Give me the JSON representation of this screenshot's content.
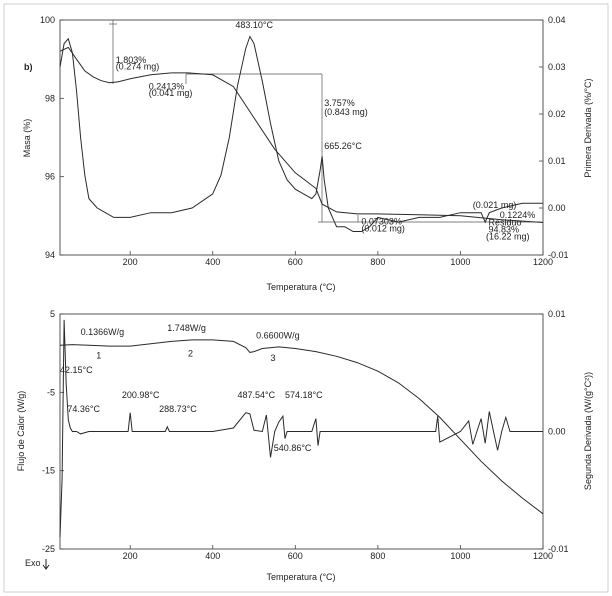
{
  "chart_data": [
    {
      "type": "line",
      "panel_label": "b)",
      "xlabel": "Temperatura (°C)",
      "ylabel": "Masa (%)",
      "y2label": "Primera Derivada (%/°C)",
      "xlim": [
        30,
        1200
      ],
      "ylim": [
        94,
        100
      ],
      "y2lim": [
        -0.01,
        0.04
      ],
      "xticks": [
        "200",
        "400",
        "600",
        "800",
        "1000",
        "1200"
      ],
      "yticks": [
        "94",
        "96",
        "98",
        "100"
      ],
      "y2ticks": [
        "-0.01",
        "0.00",
        "0.01",
        "0.02",
        "0.03",
        "0.04"
      ],
      "series": [
        {
          "role": "mass",
          "x": [
            30,
            50,
            70,
            90,
            110,
            130,
            150,
            170,
            200,
            250,
            300,
            340,
            400,
            450,
            500,
            550,
            600,
            650,
            665,
            700,
            750,
            800,
            900,
            1000,
            1100,
            1200
          ],
          "y": [
            99.2,
            99.3,
            99.0,
            98.7,
            98.55,
            98.45,
            98.4,
            98.42,
            98.5,
            98.6,
            98.65,
            98.65,
            98.6,
            98.3,
            97.5,
            96.7,
            96.1,
            95.7,
            95.3,
            95.1,
            95.05,
            95.05,
            95.03,
            95.0,
            94.9,
            94.83
          ]
        },
        {
          "role": "first-derivative",
          "x": [
            30,
            40,
            50,
            60,
            70,
            80,
            90,
            100,
            120,
            140,
            160,
            180,
            200,
            250,
            300,
            350,
            400,
            420,
            440,
            460,
            480,
            490,
            500,
            520,
            540,
            560,
            580,
            600,
            620,
            640,
            650,
            660,
            665,
            670,
            680,
            700,
            720,
            740,
            760,
            780,
            800,
            850,
            900,
            950,
            1000,
            1050,
            1060,
            1070,
            1100,
            1150,
            1200
          ],
          "y": [
            0.03,
            0.035,
            0.036,
            0.033,
            0.025,
            0.015,
            0.007,
            0.002,
            0.0,
            -0.001,
            -0.002,
            -0.002,
            -0.002,
            -0.001,
            -0.001,
            0.0,
            0.003,
            0.007,
            0.015,
            0.026,
            0.034,
            0.0365,
            0.035,
            0.027,
            0.018,
            0.01,
            0.006,
            0.004,
            0.003,
            0.002,
            0.003,
            0.008,
            0.011,
            0.006,
            0.0,
            -0.004,
            -0.004,
            -0.005,
            -0.005,
            -0.004,
            -0.002,
            -0.003,
            -0.002,
            -0.002,
            -0.001,
            -0.001,
            -0.003,
            -0.001,
            0.0,
            0.001,
            0.001
          ]
        }
      ],
      "annotations": [
        {
          "text": "1.803%",
          "x": 165,
          "y": 98.9
        },
        {
          "text": "(0.274 mg)",
          "x": 165,
          "y": 98.73
        },
        {
          "text": "0.2413%",
          "x": 245,
          "y": 98.23
        },
        {
          "text": "(0.041 mg)",
          "x": 245,
          "y": 98.06
        },
        {
          "text": "483.10°C",
          "x": 455,
          "y": 99.8
        },
        {
          "text": "3.757%",
          "x": 670,
          "y": 97.8
        },
        {
          "text": "(0.843 mg)",
          "x": 670,
          "y": 97.58
        },
        {
          "text": "665.26°C",
          "x": 670,
          "y": 96.7
        },
        {
          "text": "0.07303%",
          "x": 760,
          "y": 94.78
        },
        {
          "text": "(0.012 mg)",
          "x": 760,
          "y": 94.6
        },
        {
          "text": "(0.021 mg)",
          "x": 1030,
          "y": 95.2
        },
        {
          "text": "0.1224%",
          "x": 1095,
          "y": 94.95
        },
        {
          "text": "Residuo",
          "x": 1068,
          "y": 94.75
        },
        {
          "text": "94.83%",
          "x": 1068,
          "y": 94.57
        },
        {
          "text": "(16.22 mg)",
          "x": 1062,
          "y": 94.39
        }
      ]
    },
    {
      "type": "line",
      "xlabel": "Temperatura (°C)",
      "ylabel": "Flujo de Calor (W/g)",
      "y2label": "Segunda Derivada (W/(g°C²))",
      "exo_label": "Exo",
      "xlim": [
        30,
        1200
      ],
      "ylim": [
        -25,
        5
      ],
      "y2lim": [
        -0.01,
        0.01
      ],
      "xticks": [
        "200",
        "400",
        "600",
        "800",
        "1000",
        "1200"
      ],
      "yticks": [
        "-25",
        "-15",
        "-5",
        "5"
      ],
      "y2ticks": [
        "-0.01",
        "0.00",
        "0.01"
      ],
      "series": [
        {
          "role": "heat-flow",
          "x": [
            30,
            60,
            100,
            150,
            200,
            250,
            300,
            350,
            400,
            450,
            480,
            490,
            500,
            520,
            560,
            600,
            650,
            700,
            750,
            800,
            850,
            900,
            950,
            1000,
            1050,
            1100,
            1150,
            1200
          ],
          "y": [
            1.0,
            1.1,
            1.0,
            0.9,
            0.9,
            1.2,
            1.5,
            1.7,
            1.7,
            1.5,
            0.7,
            0.1,
            0.2,
            0.6,
            0.8,
            0.6,
            0.2,
            -0.4,
            -1.2,
            -2.3,
            -3.8,
            -5.8,
            -8.2,
            -11.0,
            -13.8,
            -16.3,
            -18.5,
            -20.5
          ]
        },
        {
          "role": "second-derivative",
          "x": [
            30,
            35,
            40,
            45,
            50,
            55,
            60,
            65,
            70,
            80,
            100,
            150,
            195,
            200,
            205,
            250,
            285,
            290,
            295,
            350,
            400,
            450,
            480,
            490,
            500,
            520,
            530,
            540,
            550,
            560,
            570,
            575,
            580,
            600,
            640,
            650,
            655,
            660,
            700,
            750,
            800,
            850,
            900,
            940,
            945,
            950,
            1000,
            1020,
            1030,
            1040,
            1050,
            1060,
            1070,
            1080,
            1090,
            1100,
            1110,
            1120,
            1150,
            1200
          ],
          "y": [
            -0.009,
            -0.004,
            0.0095,
            0.004,
            0.001,
            0.0003,
            0.0,
            0.0,
            0.0,
            -0.0002,
            0.0,
            0.0,
            0.0,
            0.0016,
            0.0,
            0.0,
            0.0,
            0.0004,
            0.0,
            0.0,
            0.0,
            0.0003,
            0.0016,
            0.0015,
            0.0001,
            0.0,
            0.0014,
            -0.0022,
            0.0,
            0.0008,
            0.0013,
            -0.0006,
            0.0,
            0.0,
            0.0,
            0.0011,
            -0.0012,
            0.0,
            0.0,
            0.0,
            0.0,
            0.0,
            0.0,
            0.0,
            0.0013,
            -0.0009,
            0.0,
            0.0009,
            -0.0011,
            0.0,
            0.0011,
            -0.001,
            0.0017,
            0.0,
            -0.0016,
            0.0,
            0.0012,
            0.0,
            0.0,
            0.0
          ]
        }
      ],
      "annotations": [
        {
          "text": "0.1366W/g",
          "x": 80,
          "y": 2.35
        },
        {
          "text": "1",
          "x": 118,
          "y": -0.65
        },
        {
          "text": "1.748W/g",
          "x": 290,
          "y": 2.85
        },
        {
          "text": "2",
          "x": 340,
          "y": -0.45
        },
        {
          "text": "0.6600W/g",
          "x": 505,
          "y": 1.85
        },
        {
          "text": "3",
          "x": 540,
          "y": -1.0
        },
        {
          "text": "42.15°C",
          "x": 30,
          "y": -2.5
        },
        {
          "text": "74.36°C",
          "x": 48,
          "y": -7.5
        },
        {
          "text": "200.98°C",
          "x": 180,
          "y": -5.75
        },
        {
          "text": "288.73°C",
          "x": 270,
          "y": -7.5
        },
        {
          "text": "487.54°C",
          "x": 460,
          "y": -5.75
        },
        {
          "text": "574.18°C",
          "x": 575,
          "y": -5.75
        },
        {
          "text": "540.86°C",
          "x": 548,
          "y": -12.5
        }
      ]
    }
  ]
}
